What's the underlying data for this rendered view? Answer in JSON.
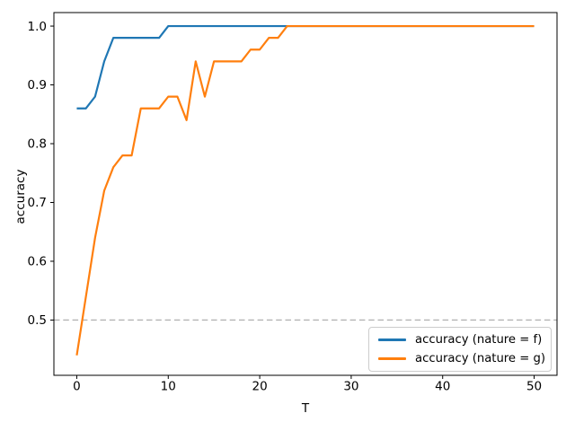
{
  "chart_data": {
    "type": "line",
    "title": "",
    "xlabel": "T",
    "ylabel": "accuracy",
    "grid": false,
    "xlim": [
      -2.5,
      52.5
    ],
    "ylim": [
      0.406,
      1.023
    ],
    "x_ticks": [
      0,
      10,
      20,
      30,
      40,
      50
    ],
    "x_tick_labels": [
      "0",
      "10",
      "20",
      "30",
      "40",
      "50"
    ],
    "y_ticks": [
      0.5,
      0.6,
      0.7,
      0.8,
      0.9,
      1.0
    ],
    "y_tick_labels": [
      "0.5",
      "0.6",
      "0.7",
      "0.8",
      "0.9",
      "1.0"
    ],
    "x": [
      0,
      1,
      2,
      3,
      4,
      5,
      6,
      7,
      8,
      9,
      10,
      11,
      12,
      13,
      14,
      15,
      16,
      17,
      18,
      19,
      20,
      21,
      22,
      23,
      24,
      25,
      26,
      27,
      28,
      29,
      30,
      31,
      32,
      33,
      34,
      35,
      36,
      37,
      38,
      39,
      40,
      41,
      42,
      43,
      44,
      45,
      46,
      47,
      48,
      49,
      50
    ],
    "series": [
      {
        "name": "accuracy (nature = f)",
        "color": "#1f77b4",
        "values": [
          0.86,
          0.86,
          0.88,
          0.94,
          0.98,
          0.98,
          0.98,
          0.98,
          0.98,
          0.98,
          1.0,
          1.0,
          1.0,
          1.0,
          1.0,
          1.0,
          1.0,
          1.0,
          1.0,
          1.0,
          1.0,
          1.0,
          1.0,
          1.0,
          1.0,
          1.0,
          1.0,
          1.0,
          1.0,
          1.0,
          1.0,
          1.0,
          1.0,
          1.0,
          1.0,
          1.0,
          1.0,
          1.0,
          1.0,
          1.0,
          1.0,
          1.0,
          1.0,
          1.0,
          1.0,
          1.0,
          1.0,
          1.0,
          1.0,
          1.0,
          1.0
        ]
      },
      {
        "name": "accuracy (nature = g)",
        "color": "#ff7f0e",
        "values": [
          0.44,
          0.54,
          0.64,
          0.72,
          0.76,
          0.78,
          0.78,
          0.86,
          0.86,
          0.86,
          0.88,
          0.88,
          0.84,
          0.94,
          0.88,
          0.94,
          0.94,
          0.94,
          0.94,
          0.96,
          0.96,
          0.98,
          0.98,
          1.0,
          1.0,
          1.0,
          1.0,
          1.0,
          1.0,
          1.0,
          1.0,
          1.0,
          1.0,
          1.0,
          1.0,
          1.0,
          1.0,
          1.0,
          1.0,
          1.0,
          1.0,
          1.0,
          1.0,
          1.0,
          1.0,
          1.0,
          1.0,
          1.0,
          1.0,
          1.0,
          1.0
        ]
      }
    ],
    "reference_line": {
      "y": 0.5,
      "style": "dashed",
      "color": "#b3b3b3"
    },
    "legend": {
      "position": "lower right",
      "entries": [
        "accuracy (nature = f)",
        "accuracy (nature = g)"
      ]
    },
    "axis_color": "#000000"
  }
}
